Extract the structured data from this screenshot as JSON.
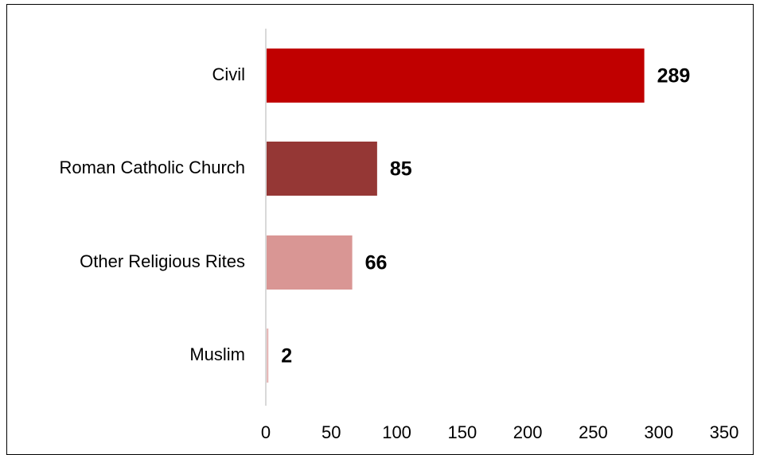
{
  "chart_data": {
    "type": "bar",
    "orientation": "horizontal",
    "categories": [
      "Civil",
      "Roman Catholic Church",
      "Other Religious Rites",
      "Muslim"
    ],
    "values": [
      289,
      85,
      66,
      2
    ],
    "data_labels": [
      "289",
      "85",
      "66",
      "2"
    ],
    "bar_colors": [
      "#c00000",
      "#953735",
      "#d99694",
      "#e6b9b8"
    ],
    "xlim": [
      0,
      350
    ],
    "x_ticks": [
      0,
      50,
      100,
      150,
      200,
      250,
      300,
      350
    ],
    "x_tick_labels": [
      "0",
      "50",
      "100",
      "150",
      "200",
      "250",
      "300",
      "350"
    ],
    "grid": false,
    "axis_color": "#d9d9d9",
    "title": "",
    "xlabel": "",
    "ylabel": ""
  }
}
